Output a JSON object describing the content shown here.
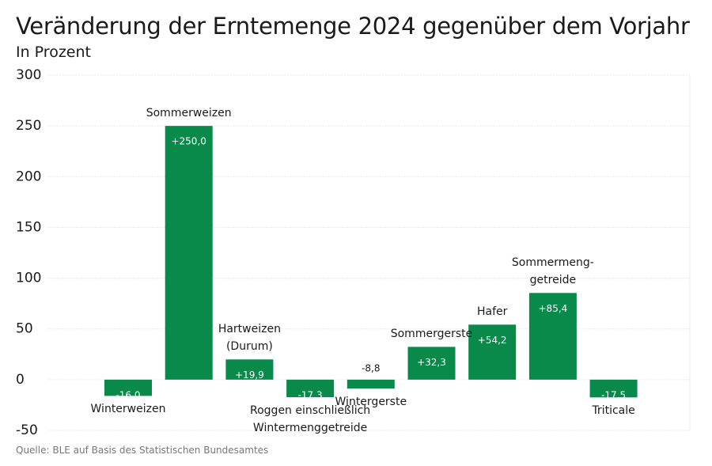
{
  "chart_data": {
    "type": "bar",
    "title": "Veränderung der Erntemenge 2024 gegenüber dem Vorjahr",
    "subtitle": "In Prozent",
    "source": "Quelle: BLE auf Basis des Statistischen Bundesamtes",
    "categories": [
      "Winterweizen",
      "Sommerweizen",
      "Hartweizen\n(Durum)",
      "Roggen einschließlich\nWintermenggetreide",
      "Wintergerste",
      "Sommergerste",
      "Hafer",
      "Sommermeng-\ngetreide",
      "Triticale"
    ],
    "values": [
      -16.0,
      250.0,
      19.9,
      -17.3,
      -8.8,
      32.3,
      54.2,
      85.4,
      -17.5
    ],
    "value_labels": [
      "-16,0",
      "+250,0",
      "+19,9",
      "-17,3",
      "-8,8",
      "+32,3",
      "+54,2",
      "+85,4",
      "-17,5"
    ],
    "color": "#0a8a4a",
    "ylim": [
      -50,
      300
    ],
    "yticks": [
      -50,
      0,
      50,
      100,
      150,
      200,
      250,
      300
    ],
    "grid": true
  }
}
